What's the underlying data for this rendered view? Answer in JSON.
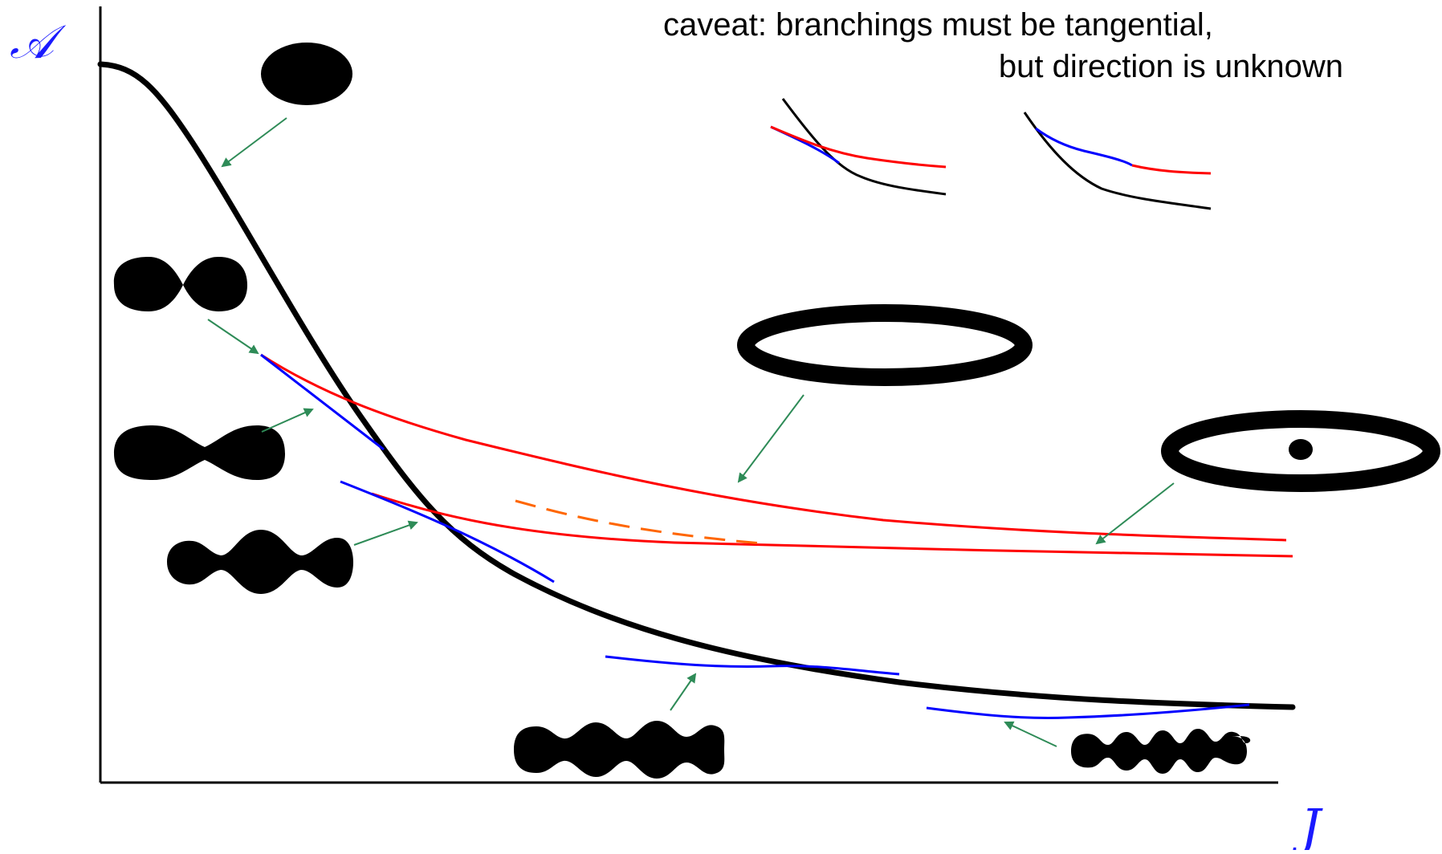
{
  "axes": {
    "y_label": "𝒜",
    "x_label": "J"
  },
  "caveat": {
    "line1": "caveat: branchings must be tangential,",
    "line2": "but direction is unknown"
  },
  "colors": {
    "main_curve": "#000000",
    "branch_red": "#ff0000",
    "branch_blue": "#0000ff",
    "dashed_orange": "#ff6600",
    "arrow_green": "#2e8b57",
    "axis_label": "#1a1aff"
  },
  "shapes": [
    "round-droplet",
    "two-lobe-droplet",
    "peanut-droplet",
    "three-lobe-droplet",
    "multi-lobe-droplet",
    "many-lobe-droplet",
    "torus-ring",
    "torus-ring-with-center-drop"
  ]
}
